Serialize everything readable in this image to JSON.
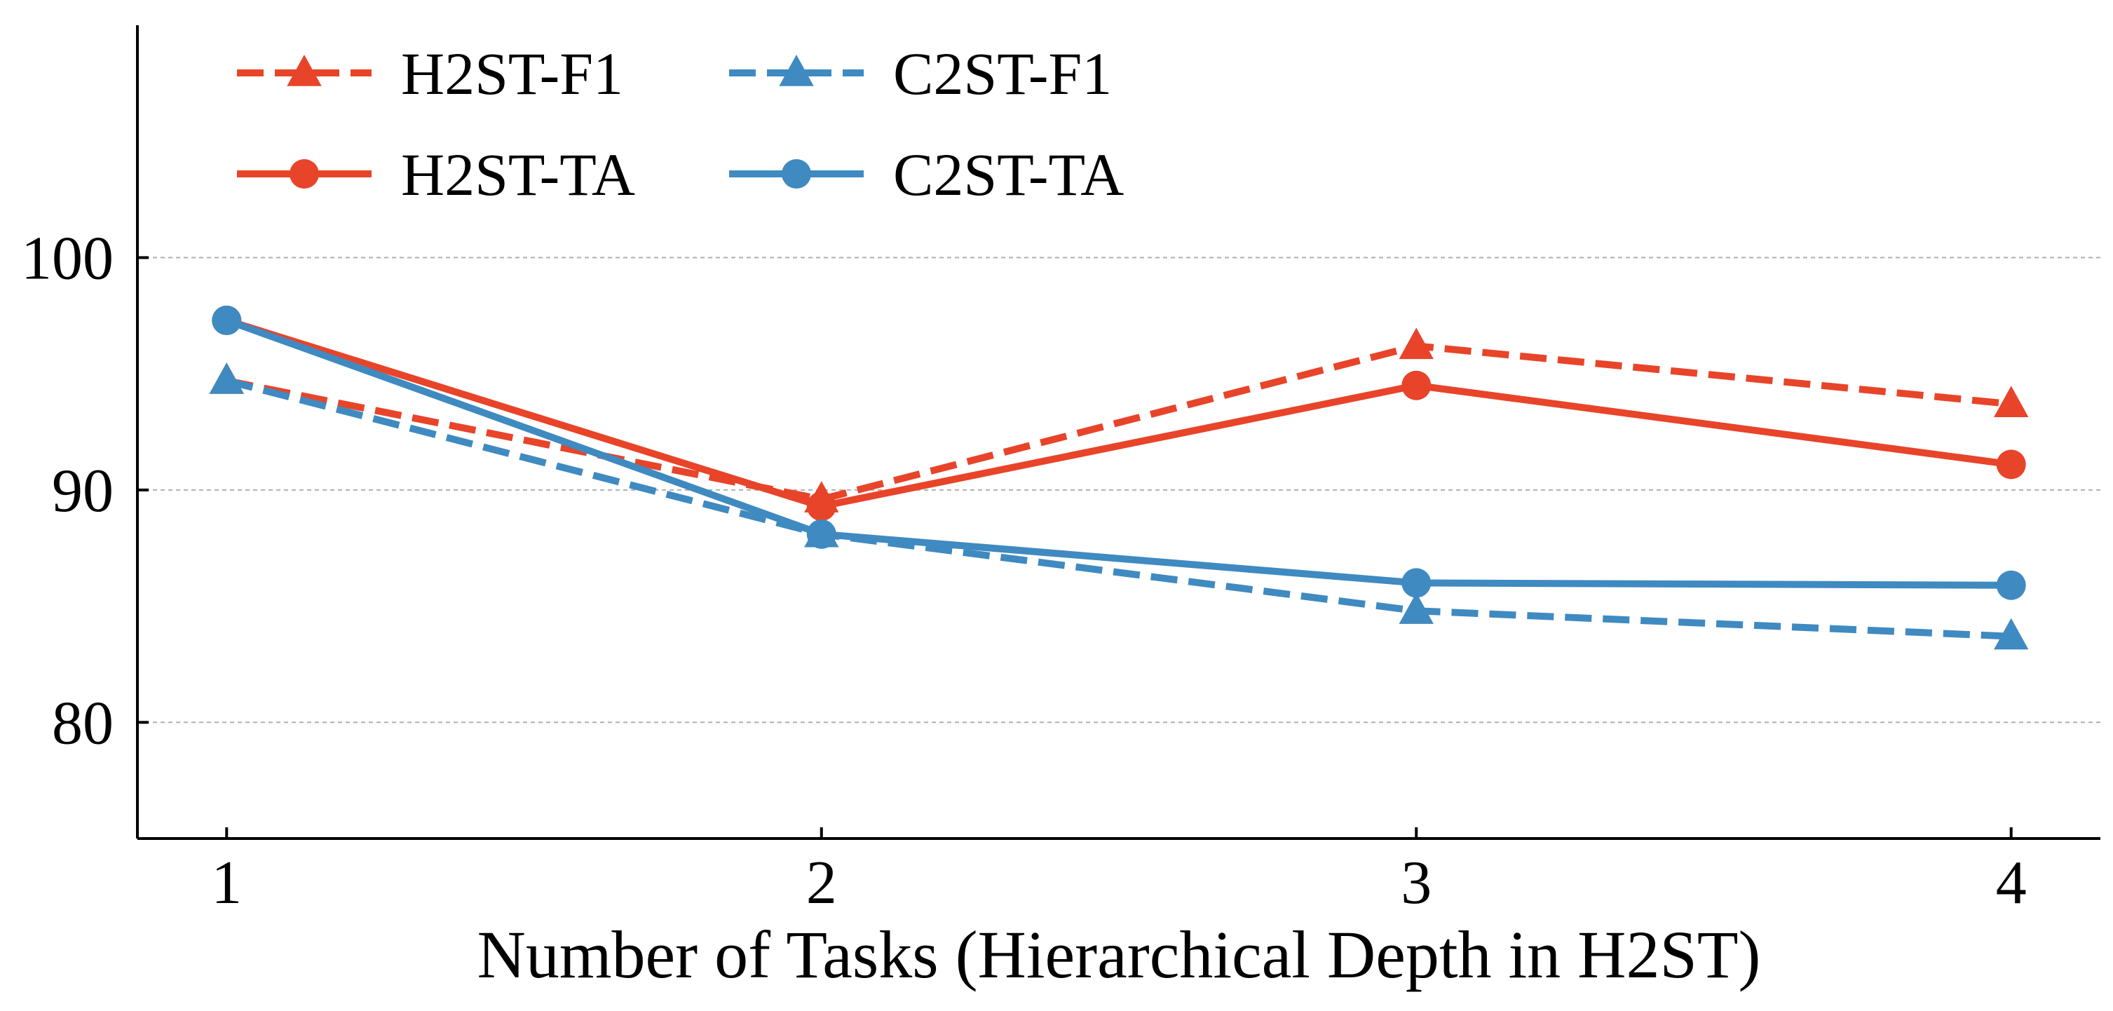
{
  "chart_data": {
    "type": "line",
    "title": "",
    "xlabel": "Number of Tasks (Hierarchical Depth in H2ST)",
    "ylabel": "",
    "x": [
      1,
      2,
      3,
      4
    ],
    "x_tick_labels": [
      "1",
      "2",
      "3",
      "4"
    ],
    "xlim": [
      0.85,
      4.15
    ],
    "ylim": [
      75,
      110
    ],
    "y_ticks": [
      80,
      90,
      100
    ],
    "y_tick_labels": [
      "80",
      "90",
      "100"
    ],
    "grid": "horizontal dashed",
    "legend_position": "top-left",
    "series": [
      {
        "name": "H2ST-F1",
        "values": [
          94.7,
          89.6,
          96.2,
          93.7
        ],
        "color": "#E8442A",
        "line_style": "dashed",
        "marker": "triangle"
      },
      {
        "name": "C2ST-F1",
        "values": [
          94.7,
          88.1,
          84.8,
          83.7
        ],
        "color": "#3F8AC0",
        "line_style": "dashed",
        "marker": "triangle"
      },
      {
        "name": "H2ST-TA",
        "values": [
          97.3,
          89.3,
          94.5,
          91.1
        ],
        "color": "#E8442A",
        "line_style": "solid",
        "marker": "circle"
      },
      {
        "name": "C2ST-TA",
        "values": [
          97.3,
          88.1,
          86.0,
          85.9
        ],
        "color": "#3F8AC0",
        "line_style": "solid",
        "marker": "circle"
      }
    ]
  }
}
